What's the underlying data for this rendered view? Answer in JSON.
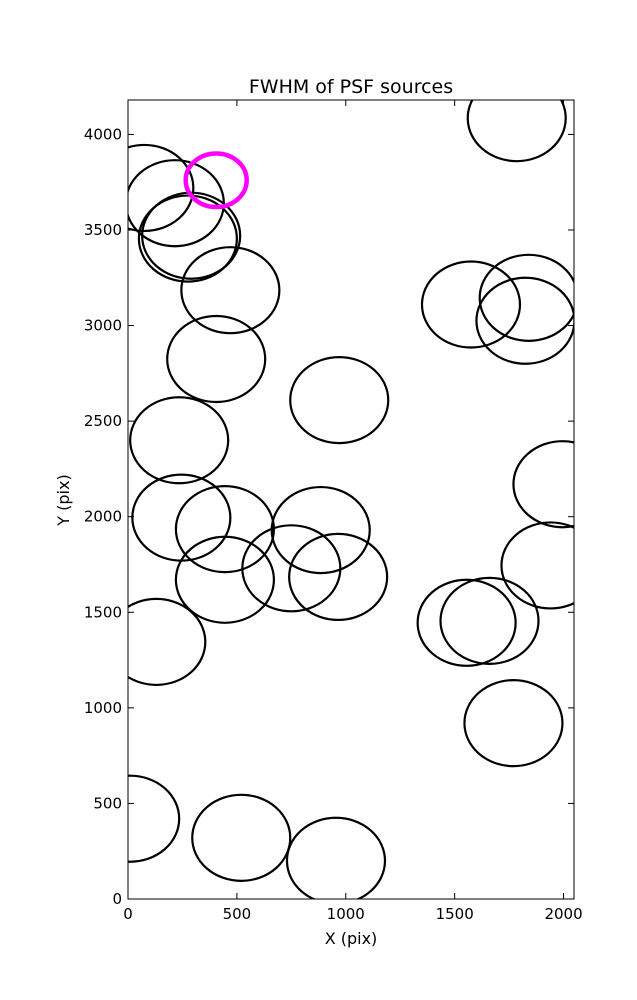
{
  "chart_data": {
    "type": "scatter",
    "title": "FWHM of PSF sources",
    "xlabel": "X (pix)",
    "ylabel": "Y (pix)",
    "xlim": [
      0,
      2048
    ],
    "ylim": [
      0,
      4180
    ],
    "xticks": [
      0,
      500,
      1000,
      1500,
      2000
    ],
    "yticks": [
      0,
      500,
      1000,
      1500,
      2000,
      2500,
      3000,
      3500,
      4000
    ],
    "grid": false,
    "circle_radius": 225,
    "colors": {
      "sources": "#000000",
      "highlight": "#ff00ff"
    },
    "sources": [
      {
        "x": 1785,
        "y": 4085
      },
      {
        "x": 75,
        "y": 3720
      },
      {
        "x": 215,
        "y": 3640
      },
      {
        "x": 290,
        "y": 3470
      },
      {
        "x": 275,
        "y": 3455
      },
      {
        "x": 470,
        "y": 3185
      },
      {
        "x": 1575,
        "y": 3110
      },
      {
        "x": 1840,
        "y": 3145
      },
      {
        "x": 1825,
        "y": 3025
      },
      {
        "x": 405,
        "y": 2825
      },
      {
        "x": 970,
        "y": 2610
      },
      {
        "x": 235,
        "y": 2400
      },
      {
        "x": 1995,
        "y": 2170
      },
      {
        "x": 245,
        "y": 1995
      },
      {
        "x": 445,
        "y": 1935
      },
      {
        "x": 885,
        "y": 1930
      },
      {
        "x": 445,
        "y": 1670
      },
      {
        "x": 750,
        "y": 1730
      },
      {
        "x": 965,
        "y": 1685
      },
      {
        "x": 1940,
        "y": 1745
      },
      {
        "x": 1555,
        "y": 1445
      },
      {
        "x": 1660,
        "y": 1455
      },
      {
        "x": 130,
        "y": 1345
      },
      {
        "x": 1770,
        "y": 920
      },
      {
        "x": 10,
        "y": 420
      },
      {
        "x": 520,
        "y": 320
      },
      {
        "x": 955,
        "y": 200
      }
    ],
    "highlight": {
      "x": 405,
      "y": 3760,
      "radius": 140
    }
  }
}
